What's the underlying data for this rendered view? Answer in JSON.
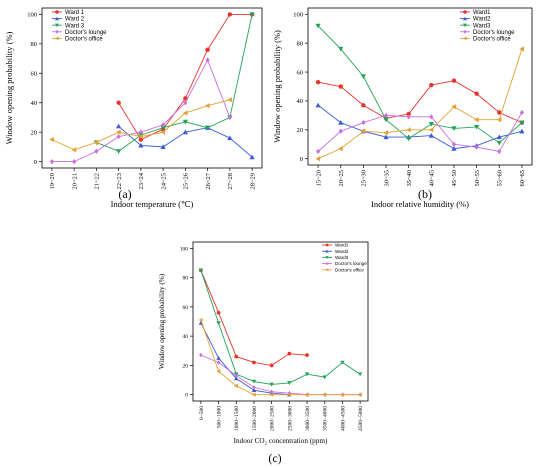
{
  "chart_data": [
    {
      "type": "line",
      "panel_label": "(a)",
      "xlabel": "Indoor temperature (℃)",
      "ylabel": "Window opening probability (%)",
      "ylim": [
        0,
        100
      ],
      "yticks": [
        0,
        20,
        40,
        60,
        80,
        100
      ],
      "categories": [
        "19~20",
        "20~21",
        "21~22",
        "22~23",
        "23~24",
        "24~25",
        "25~26",
        "26~27",
        "27~28",
        "28~29"
      ],
      "legend_position": "top-left",
      "series": [
        {
          "name": "Ward 1",
          "color": "#e8332c",
          "marker": "circle",
          "values": [
            null,
            null,
            null,
            40,
            15,
            22,
            43,
            76,
            100,
            100
          ]
        },
        {
          "name": "Ward 2",
          "color": "#3a5bd6",
          "marker": "triangle-up",
          "values": [
            null,
            null,
            null,
            24,
            11,
            10,
            20,
            23,
            16,
            3
          ]
        },
        {
          "name": "Ward 3",
          "color": "#22a454",
          "marker": "triangle-down",
          "values": [
            null,
            null,
            13,
            7,
            18,
            23,
            27,
            23,
            30,
            100
          ]
        },
        {
          "name": "Doctor's lounge",
          "color": "#c86fe0",
          "marker": "diamond",
          "values": [
            0,
            0,
            7,
            17,
            20,
            25,
            40,
            69,
            30,
            null
          ]
        },
        {
          "name": "Doctor's office",
          "color": "#e5a033",
          "marker": "triangle-left",
          "values": [
            15,
            8,
            13,
            20,
            17,
            20,
            33,
            38,
            42,
            null
          ]
        }
      ]
    },
    {
      "type": "line",
      "panel_label": "(b)",
      "xlabel": "Indoor relative humidity (%)",
      "ylabel": "Window opening probability (%)",
      "ylim": [
        0,
        100
      ],
      "yticks": [
        0,
        20,
        40,
        60,
        80,
        100
      ],
      "categories": [
        "15~20",
        "20~25",
        "25~30",
        "30~35",
        "35~40",
        "40~45",
        "45~50",
        "50~55",
        "55~60",
        "60~65"
      ],
      "legend_position": "top-right",
      "series": [
        {
          "name": "Ward1",
          "color": "#e8332c",
          "marker": "circle",
          "values": [
            53,
            50,
            37,
            28,
            31,
            51,
            54,
            45,
            32,
            25
          ]
        },
        {
          "name": "Ward2",
          "color": "#3a5bd6",
          "marker": "triangle-up",
          "values": [
            37,
            25,
            19,
            15,
            15,
            16,
            7,
            9,
            15,
            19
          ]
        },
        {
          "name": "Ward3",
          "color": "#22a454",
          "marker": "triangle-down",
          "values": [
            92,
            76,
            57,
            27,
            14,
            24,
            21,
            22,
            11,
            25
          ]
        },
        {
          "name": "Doctor's lounge",
          "color": "#c86fe0",
          "marker": "diamond",
          "values": [
            5,
            19,
            25,
            30,
            29,
            29,
            10,
            8,
            5,
            32
          ]
        },
        {
          "name": "Doctor's office",
          "color": "#e5a033",
          "marker": "triangle-left",
          "values": [
            0,
            7,
            19,
            18,
            20,
            20,
            36,
            27,
            27,
            76
          ]
        }
      ]
    },
    {
      "type": "line",
      "panel_label": "(c)",
      "xlabel": "Indoor CO₂ concentration (ppm)",
      "ylabel": "Window opening probability (%)",
      "ylim": [
        0,
        100
      ],
      "yticks": [
        0,
        20,
        40,
        60,
        80,
        100
      ],
      "categories": [
        "0~500",
        "500~1000",
        "1000~1500",
        "1500~2000",
        "2000~2500",
        "2500~3000",
        "3000~3500",
        "3500~4000",
        "4000~4500",
        "4500~5000"
      ],
      "legend_position": "top-right",
      "series": [
        {
          "name": "Ward1",
          "color": "#e8332c",
          "marker": "circle",
          "values": [
            85,
            56,
            26,
            22,
            20,
            28,
            27,
            null,
            null,
            null
          ]
        },
        {
          "name": "Ward2",
          "color": "#3a5bd6",
          "marker": "triangle-up",
          "values": [
            49,
            25,
            11,
            3,
            1,
            0,
            null,
            null,
            null,
            null
          ]
        },
        {
          "name": "Ward3",
          "color": "#22a454",
          "marker": "triangle-down",
          "values": [
            85,
            49,
            14,
            9,
            7,
            8,
            14,
            12,
            22,
            14
          ]
        },
        {
          "name": "Doctor's lounge",
          "color": "#c86fe0",
          "marker": "diamond",
          "values": [
            27,
            22,
            13,
            5,
            2,
            1,
            0,
            0,
            0,
            0
          ]
        },
        {
          "name": "Doctor's office",
          "color": "#e5a033",
          "marker": "triangle-left",
          "values": [
            51,
            16,
            6,
            0,
            0,
            0,
            0,
            0,
            0,
            0
          ]
        }
      ]
    }
  ]
}
